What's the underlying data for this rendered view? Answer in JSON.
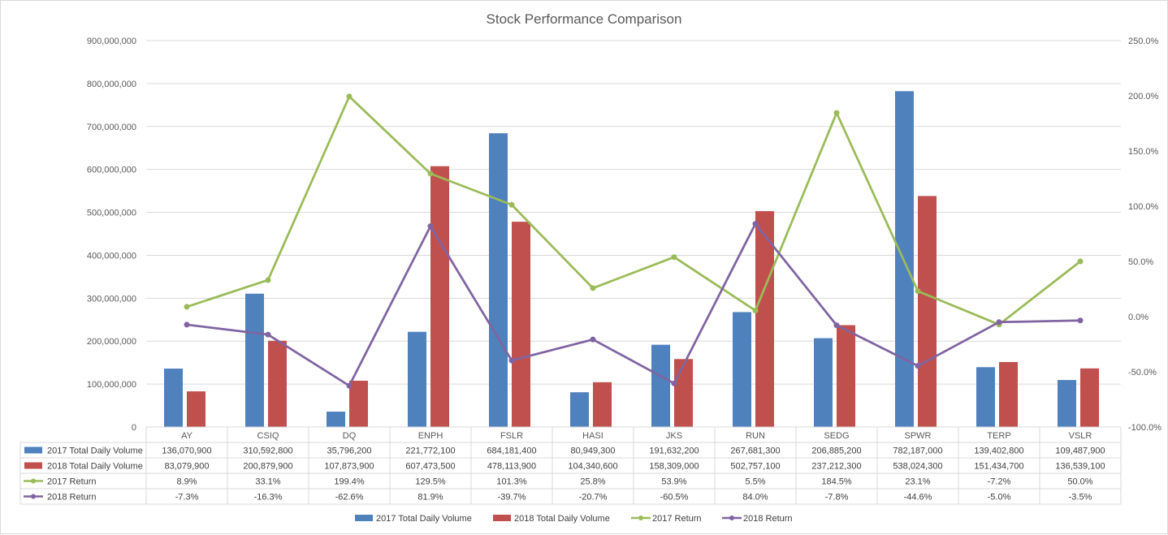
{
  "chart_data": {
    "type": "bar",
    "title": "Stock Performance Comparison",
    "categories": [
      "AY",
      "CSIQ",
      "DQ",
      "ENPH",
      "FSLR",
      "HASI",
      "JKS",
      "RUN",
      "SEDG",
      "SPWR",
      "TERP",
      "VSLR"
    ],
    "y_left": {
      "min": 0,
      "max": 900000000,
      "ticks": [
        "0",
        "100,000,000",
        "200,000,000",
        "300,000,000",
        "400,000,000",
        "500,000,000",
        "600,000,000",
        "700,000,000",
        "800,000,000",
        "900,000,000"
      ]
    },
    "y_right": {
      "min": -100,
      "max": 250,
      "ticks": [
        "-100.0%",
        "-50.0%",
        "0.0%",
        "50.0%",
        "100.0%",
        "150.0%",
        "200.0%",
        "250.0%"
      ]
    },
    "grid": true,
    "legend_position": "bottom",
    "data_table": true,
    "series": [
      {
        "name": "2017 Total Daily Volume",
        "kind": "bar",
        "axis": "left",
        "color": "#4f81bd",
        "values": [
          136070900,
          310592800,
          35796200,
          221772100,
          684181400,
          80949300,
          191632200,
          267681300,
          206885200,
          782187000,
          139402800,
          109487900
        ],
        "labels": [
          "136,070,900",
          "310,592,800",
          "35,796,200",
          "221,772,100",
          "684,181,400",
          "80,949,300",
          "191,632,200",
          "267,681,300",
          "206,885,200",
          "782,187,000",
          "139,402,800",
          "109,487,900"
        ]
      },
      {
        "name": "2018 Total Daily Volume",
        "kind": "bar",
        "axis": "left",
        "color": "#c0504d",
        "values": [
          83079900,
          200879900,
          107873900,
          607473500,
          478113900,
          104340600,
          158309000,
          502757100,
          237212300,
          538024300,
          151434700,
          136539100
        ],
        "labels": [
          "83,079,900",
          "200,879,900",
          "107,873,900",
          "607,473,500",
          "478,113,900",
          "104,340,600",
          "158,309,000",
          "502,757,100",
          "237,212,300",
          "538,024,300",
          "151,434,700",
          "136,539,100"
        ]
      },
      {
        "name": "2017 Return",
        "kind": "line",
        "axis": "right",
        "color": "#9bbb59",
        "values": [
          8.9,
          33.1,
          199.4,
          129.5,
          101.3,
          25.8,
          53.9,
          5.5,
          184.5,
          23.1,
          -7.2,
          50.0
        ],
        "labels": [
          "8.9%",
          "33.1%",
          "199.4%",
          "129.5%",
          "101.3%",
          "25.8%",
          "53.9%",
          "5.5%",
          "184.5%",
          "23.1%",
          "-7.2%",
          "50.0%"
        ]
      },
      {
        "name": "2018 Return",
        "kind": "line",
        "axis": "right",
        "color": "#8064a2",
        "values": [
          -7.3,
          -16.3,
          -62.6,
          81.9,
          -39.7,
          -20.7,
          -60.5,
          84.0,
          -7.8,
          -44.6,
          -5.0,
          -3.5
        ],
        "labels": [
          "-7.3%",
          "-16.3%",
          "-62.6%",
          "81.9%",
          "-39.7%",
          "-20.7%",
          "-60.5%",
          "84.0%",
          "-7.8%",
          "-44.6%",
          "-5.0%",
          "-3.5%"
        ]
      }
    ]
  }
}
